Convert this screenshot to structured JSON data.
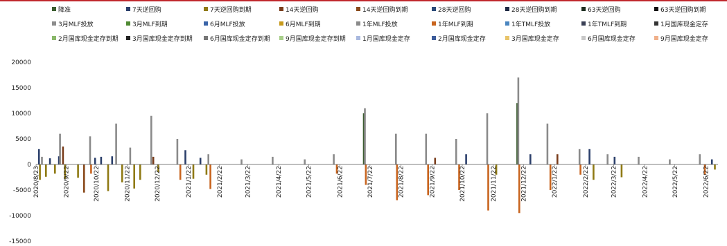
{
  "chart_data": {
    "type": "bar",
    "title": "",
    "xlabel": "",
    "ylabel": "",
    "ylim": [
      -15000,
      20000
    ],
    "yticks": [
      -15000,
      -10000,
      -5000,
      0,
      5000,
      10000,
      15000,
      20000
    ],
    "ytick_labels": [
      "-15000",
      "-10000",
      "-5000",
      "0",
      "5000",
      "10000",
      "15000",
      "20000"
    ],
    "x_tick_labels": [
      "2020/8/23",
      "2020/9/22",
      "2020/10/22",
      "2020/11/22",
      "2020/12/22",
      "2021/1/22",
      "2021/2/22",
      "2021/3/22",
      "2021/4/22",
      "2021/5/22",
      "2021/6/22",
      "2021/7/22",
      "2021/8/22",
      "2021/9/22",
      "2021/10/22",
      "2021/11/22",
      "2021/12/22",
      "2022/1/22",
      "2022/2/22",
      "2022/3/22",
      "2022/4/22",
      "2022/5/22",
      "2022/6/22"
    ],
    "legend_position": "top",
    "grid": false,
    "series": [
      {
        "name": "降准",
        "color": "#3b5d2f"
      },
      {
        "name": "7天逆回购",
        "color": "#2b3f6b"
      },
      {
        "name": "7天逆回购到期",
        "color": "#8f7a14"
      },
      {
        "name": "14天逆回购",
        "color": "#7a3d1c"
      },
      {
        "name": "14天逆回购到期",
        "color": "#8a4a1c"
      },
      {
        "name": "28天逆回购",
        "color": "#2b4a78"
      },
      {
        "name": "28天逆回购到期",
        "color": "#1f2a44"
      },
      {
        "name": "63天逆回购",
        "color": "#1f2f22"
      },
      {
        "name": "63天逆回购到期",
        "color": "#111111"
      },
      {
        "name": "3月MLF投放",
        "color": "#8c8c8c"
      },
      {
        "name": "3月MLF到期",
        "color": "#4f8a33"
      },
      {
        "name": "6月MLF投放",
        "color": "#3a64a8"
      },
      {
        "name": "6月MLF到期",
        "color": "#c79a1c"
      },
      {
        "name": "1年MLF投放",
        "color": "#8a8a8a"
      },
      {
        "name": "1年MLF到期",
        "color": "#c8641e"
      },
      {
        "name": "1年TMLF投放",
        "color": "#4a86c0"
      },
      {
        "name": "1年TMLF到期",
        "color": "#3a3f55"
      },
      {
        "name": "1月国库现金定存",
        "color": "#333333"
      },
      {
        "name": "2月国库现金定存到期",
        "color": "#8ab86a"
      },
      {
        "name": "3月国库现金定存到期",
        "color": "#222222"
      },
      {
        "name": "6月国库现金定存到期",
        "color": "#777777"
      },
      {
        "name": "9月国库现金定存到期",
        "color": "#a8cf8a"
      },
      {
        "name": "1月国库现金定存",
        "color": "#a9b9df"
      },
      {
        "name": "2月国库现金定存",
        "color": "#3d5c9a"
      },
      {
        "name": "3月国库现金定存",
        "color": "#e8c46a"
      },
      {
        "name": "6月国库现金定存",
        "color": "#c8c8c8"
      },
      {
        "name": "9月国库现金定存",
        "color": "#f0b08a"
      }
    ],
    "bars": [
      {
        "x": "2020/8/25",
        "series": "7天逆回购",
        "value": 3000
      },
      {
        "x": "2020/8/26",
        "series": "7天逆回购到期",
        "value": -3000
      },
      {
        "x": "2020/8/28",
        "series": "1年MLF投放",
        "value": 1500
      },
      {
        "x": "2020/9/1",
        "series": "7天逆回购到期",
        "value": -2400
      },
      {
        "x": "2020/9/5",
        "series": "7天逆回购",
        "value": 1200
      },
      {
        "x": "2020/9/10",
        "series": "7天逆回购到期",
        "value": -1800
      },
      {
        "x": "2020/9/14",
        "series": "7天逆回购",
        "value": 1600
      },
      {
        "x": "2020/9/15",
        "series": "1年MLF投放",
        "value": 6000
      },
      {
        "x": "2020/9/18",
        "series": "14天逆回购",
        "value": 3500
      },
      {
        "x": "2020/9/20",
        "series": "7天逆回购到期",
        "value": -2800
      },
      {
        "x": "2020/10/3",
        "series": "7天逆回购到期",
        "value": -2600
      },
      {
        "x": "2020/10/9",
        "series": "14天逆回购到期",
        "value": -5500
      },
      {
        "x": "2020/10/15",
        "series": "1年MLF投放",
        "value": 5500
      },
      {
        "x": "2020/10/16",
        "series": "1年MLF到期",
        "value": -1800
      },
      {
        "x": "2020/10/20",
        "series": "7天逆回购",
        "value": 1300
      },
      {
        "x": "2020/10/26",
        "series": "7天逆回购",
        "value": 1500
      },
      {
        "x": "2020/11/2",
        "series": "7天逆回购到期",
        "value": -5200
      },
      {
        "x": "2020/11/6",
        "series": "7天逆回购",
        "value": 1600
      },
      {
        "x": "2020/11/10",
        "series": "1年MLF投放",
        "value": 8000
      },
      {
        "x": "2020/11/16",
        "series": "7天逆回购到期",
        "value": -3500
      },
      {
        "x": "2020/11/24",
        "series": "1年MLF投放",
        "value": 3300
      },
      {
        "x": "2020/11/28",
        "series": "7天逆回购到期",
        "value": -4700
      },
      {
        "x": "2020/12/4",
        "series": "7天逆回购到期",
        "value": -3000
      },
      {
        "x": "2020/12/15",
        "series": "1年MLF投放",
        "value": 9500
      },
      {
        "x": "2020/12/17",
        "series": "14天逆回购",
        "value": 1500
      },
      {
        "x": "2020/12/22",
        "series": "7天逆回购到期",
        "value": -1500
      },
      {
        "x": "2021/1/10",
        "series": "1年MLF投放",
        "value": 5000
      },
      {
        "x": "2021/1/13",
        "series": "1年MLF到期",
        "value": -3000
      },
      {
        "x": "2021/1/18",
        "series": "7天逆回购",
        "value": 2800
      },
      {
        "x": "2021/1/26",
        "series": "7天逆回购到期",
        "value": -2800
      },
      {
        "x": "2021/2/2",
        "series": "7天逆回购",
        "value": 1300
      },
      {
        "x": "2021/2/8",
        "series": "7天逆回购到期",
        "value": -2000
      },
      {
        "x": "2021/2/10",
        "series": "1年MLF投放",
        "value": 2000
      },
      {
        "x": "2021/2/12",
        "series": "1年MLF到期",
        "value": -4800
      },
      {
        "x": "2021/3/15",
        "series": "1年MLF投放",
        "value": 1000
      },
      {
        "x": "2021/4/15",
        "series": "1年MLF投放",
        "value": 1500
      },
      {
        "x": "2021/5/17",
        "series": "1年MLF投放",
        "value": 1000
      },
      {
        "x": "2021/6/15",
        "series": "1年MLF投放",
        "value": 2000
      },
      {
        "x": "2021/6/18",
        "series": "1年MLF到期",
        "value": -1800
      },
      {
        "x": "2021/7/15",
        "series": "降准",
        "value": 10000
      },
      {
        "x": "2021/7/16",
        "series": "1年MLF投放",
        "value": 11000
      },
      {
        "x": "2021/7/17",
        "series": "1年MLF到期",
        "value": -4000
      },
      {
        "x": "2021/8/16",
        "series": "1年MLF投放",
        "value": 6000
      },
      {
        "x": "2021/8/17",
        "series": "1年MLF到期",
        "value": -7000
      },
      {
        "x": "2021/9/15",
        "series": "1年MLF投放",
        "value": 6000
      },
      {
        "x": "2021/9/17",
        "series": "1年MLF到期",
        "value": -6000
      },
      {
        "x": "2021/9/24",
        "series": "14天逆回购",
        "value": 1300
      },
      {
        "x": "2021/10/15",
        "series": "1年MLF投放",
        "value": 5000
      },
      {
        "x": "2021/10/18",
        "series": "1年MLF到期",
        "value": -5000
      },
      {
        "x": "2021/10/25",
        "series": "7天逆回购",
        "value": 2000
      },
      {
        "x": "2021/11/15",
        "series": "1年MLF投放",
        "value": 10000
      },
      {
        "x": "2021/11/16",
        "series": "1年MLF到期",
        "value": -9000
      },
      {
        "x": "2021/11/24",
        "series": "7天逆回购到期",
        "value": -2000
      },
      {
        "x": "2021/12/15",
        "series": "降准",
        "value": 12000
      },
      {
        "x": "2021/12/16",
        "series": "1年MLF投放",
        "value": 17000
      },
      {
        "x": "2021/12/17",
        "series": "1年MLF到期",
        "value": -9500
      },
      {
        "x": "2021/12/28",
        "series": "7天逆回购",
        "value": 2000
      },
      {
        "x": "2022/1/14",
        "series": "1年MLF投放",
        "value": 8000
      },
      {
        "x": "2022/1/17",
        "series": "1年MLF到期",
        "value": -5000
      },
      {
        "x": "2022/1/24",
        "series": "14天逆回购",
        "value": 2000
      },
      {
        "x": "2022/2/15",
        "series": "1年MLF投放",
        "value": 3000
      },
      {
        "x": "2022/2/16",
        "series": "1年MLF到期",
        "value": -2000
      },
      {
        "x": "2022/2/25",
        "series": "7天逆回购",
        "value": 3000
      },
      {
        "x": "2022/3/1",
        "series": "7天逆回购到期",
        "value": -3000
      },
      {
        "x": "2022/3/15",
        "series": "1年MLF投放",
        "value": 2000
      },
      {
        "x": "2022/3/22",
        "series": "7天逆回购",
        "value": 1500
      },
      {
        "x": "2022/3/29",
        "series": "7天逆回购到期",
        "value": -2500
      },
      {
        "x": "2022/4/15",
        "series": "1年MLF投放",
        "value": 1500
      },
      {
        "x": "2022/5/16",
        "series": "1年MLF投放",
        "value": 1000
      },
      {
        "x": "2022/6/15",
        "series": "1年MLF投放",
        "value": 2000
      },
      {
        "x": "2022/6/20",
        "series": "1年MLF到期",
        "value": -2000
      },
      {
        "x": "2022/6/27",
        "series": "7天逆回购",
        "value": 1000
      },
      {
        "x": "2022/6/30",
        "series": "7天逆回购到期",
        "value": -1000
      }
    ]
  }
}
